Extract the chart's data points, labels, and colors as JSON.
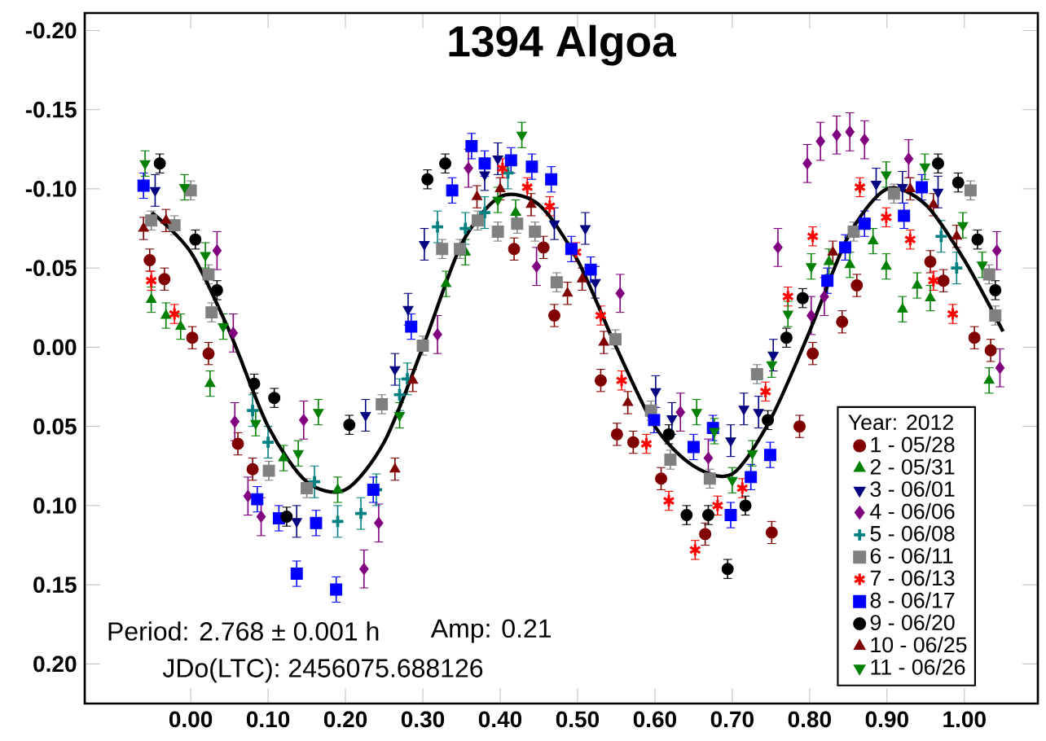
{
  "chart_data": {
    "type": "scatter",
    "title": "1394 Algoa",
    "annotations": [
      "Period: 2.768 ± 0.001 h",
      "Amp: 0.21",
      "JDo(LTC): 2456075.688126"
    ],
    "legend_title": "Year: 2012",
    "legend": "bottom right",
    "xlim": [
      -0.137,
      1.095
    ],
    "ylim": [
      0.225,
      -0.211
    ],
    "xticks": [
      {
        "value": 0,
        "label": "0.00"
      },
      {
        "value": 0.1,
        "label": "0.10"
      },
      {
        "value": 0.2,
        "label": "0.20"
      },
      {
        "value": 0.3,
        "label": "0.30"
      },
      {
        "value": 0.4,
        "label": "0.40"
      },
      {
        "value": 0.5,
        "label": "0.50"
      },
      {
        "value": 0.6,
        "label": "0.60"
      },
      {
        "value": 0.7,
        "label": "0.70"
      },
      {
        "value": 0.8,
        "label": "0.80"
      },
      {
        "value": 0.9,
        "label": "0.90"
      },
      {
        "value": 1.0,
        "label": "1.00"
      }
    ],
    "yticks": [
      {
        "value": -0.2,
        "label": "-0.20"
      },
      {
        "value": -0.15,
        "label": "-0.15"
      },
      {
        "value": -0.1,
        "label": "-0.10"
      },
      {
        "value": -0.05,
        "label": "-0.05"
      },
      {
        "value": 0,
        "label": "0.00"
      },
      {
        "value": 0.05,
        "label": "0.05"
      },
      {
        "value": 0.1,
        "label": "0.10"
      },
      {
        "value": 0.15,
        "label": "0.15"
      },
      {
        "value": 0.2,
        "label": "0.20"
      }
    ],
    "grid": false,
    "series": [
      {
        "name": "1 - 05/28",
        "color": "#800000",
        "marker": "circle",
        "x": [
          -0.053,
          -0.034,
          0.002,
          0.023,
          0.061,
          0.08,
          0.418,
          0.456,
          0.47,
          0.53,
          0.551,
          0.572,
          0.608,
          0.665,
          0.751,
          0.787,
          0.804,
          0.842,
          0.861,
          0.956,
          0.973,
          1.013,
          1.034
        ],
        "values": [
          -0.055,
          -0.043,
          -0.006,
          0.004,
          0.061,
          0.077,
          -0.062,
          -0.063,
          -0.02,
          0.021,
          0.055,
          0.06,
          0.083,
          0.118,
          0.117,
          0.05,
          0.004,
          -0.016,
          -0.039,
          -0.054,
          -0.042,
          -0.006,
          0.002
        ],
        "errors": [
          0.007,
          0.007,
          0.007,
          0.007,
          0.007,
          0.007,
          0.007,
          0.007,
          0.007,
          0.007,
          0.007,
          0.007,
          0.007,
          0.007,
          0.007,
          0.007,
          0.007,
          0.007,
          0.007,
          0.007,
          0.007,
          0.007,
          0.007
        ]
      },
      {
        "name": "2 - 05/31",
        "color": "#008000",
        "marker": "triangle",
        "x": [
          -0.051,
          -0.032,
          -0.013,
          0.025,
          0.12,
          0.19,
          0.33,
          0.355,
          0.42,
          0.825,
          0.852,
          0.882,
          0.899,
          0.92,
          0.939,
          0.956,
          1.032
        ],
        "values": [
          -0.03,
          -0.02,
          -0.013,
          0.023,
          0.07,
          0.09,
          -0.04,
          -0.06,
          -0.085,
          -0.054,
          -0.052,
          -0.067,
          -0.051,
          -0.024,
          -0.039,
          -0.031,
          0.021
        ],
        "errors": [
          0.008,
          0.008,
          0.008,
          0.008,
          0.008,
          0.008,
          0.008,
          0.008,
          0.008,
          0.008,
          0.008,
          0.008,
          0.008,
          0.008,
          0.008,
          0.008,
          0.008
        ]
      },
      {
        "name": "3 - 06/01",
        "color": "#000080",
        "marker": "triangle-down",
        "x": [
          -0.046,
          0.137,
          0.226,
          0.264,
          0.281,
          0.302,
          0.38,
          0.397,
          0.47,
          0.51,
          0.523,
          0.601,
          0.622,
          0.698,
          0.715,
          0.734,
          0.753,
          0.886,
          0.92,
          0.966
        ],
        "values": [
          -0.099,
          0.11,
          0.043,
          0.014,
          -0.024,
          -0.065,
          -0.109,
          -0.119,
          -0.078,
          -0.075,
          -0.041,
          0.028,
          0.045,
          0.059,
          0.039,
          0.041,
          0.005,
          -0.103,
          -0.101,
          -0.098
        ],
        "errors": [
          0.01,
          0.01,
          0.01,
          0.01,
          0.01,
          0.01,
          0.01,
          0.01,
          0.01,
          0.01,
          0.01,
          0.01,
          0.01,
          0.01,
          0.01,
          0.01,
          0.01,
          0.01,
          0.01,
          0.01
        ]
      },
      {
        "name": "4 - 06/06",
        "color": "#800080",
        "marker": "diamond",
        "x": [
          0.034,
          0.055,
          0.057,
          0.074,
          0.091,
          0.146,
          0.224,
          0.243,
          0.319,
          0.359,
          0.447,
          0.555,
          0.633,
          0.669,
          0.759,
          0.797,
          0.802,
          0.814,
          0.819,
          0.835,
          0.852,
          0.871,
          0.928,
          1.042,
          1.046
        ],
        "values": [
          -0.061,
          -0.009,
          0.047,
          0.094,
          0.107,
          0.046,
          0.14,
          0.111,
          -0.008,
          -0.113,
          -0.051,
          -0.034,
          0.041,
          0.07,
          -0.063,
          -0.116,
          -0.02,
          -0.13,
          -0.032,
          -0.134,
          -0.136,
          -0.131,
          -0.119,
          -0.061,
          0.013
        ],
        "errors": [
          0.012,
          0.012,
          0.012,
          0.012,
          0.012,
          0.012,
          0.012,
          0.012,
          0.012,
          0.012,
          0.012,
          0.012,
          0.012,
          0.012,
          0.012,
          0.012,
          0.012,
          0.012,
          0.012,
          0.012,
          0.012,
          0.012,
          0.012,
          0.012,
          0.012
        ]
      },
      {
        "name": "5 - 06/08",
        "color": "#008080",
        "marker": "plus",
        "x": [
          0.08,
          0.1,
          0.16,
          0.19,
          0.22,
          0.24,
          0.27,
          0.28,
          0.319,
          0.355,
          0.38,
          0.41,
          0.97,
          0.99
        ],
        "values": [
          0.04,
          0.06,
          0.085,
          0.11,
          0.105,
          0.09,
          0.03,
          0.02,
          -0.076,
          -0.075,
          -0.085,
          -0.11,
          -0.07,
          -0.05
        ],
        "errors": [
          0.01,
          0.01,
          0.01,
          0.01,
          0.01,
          0.01,
          0.01,
          0.01,
          0.01,
          0.01,
          0.01,
          0.01,
          0.01,
          0.01
        ]
      },
      {
        "name": "6 - 06/11",
        "color": "#808080",
        "marker": "square",
        "x": [
          -0.051,
          -0.021,
          0.0,
          0.023,
          0.027,
          0.101,
          0.15,
          0.247,
          0.3,
          0.325,
          0.348,
          0.371,
          0.397,
          0.422,
          0.445,
          0.473,
          0.549,
          0.595,
          0.62,
          0.671,
          0.732,
          0.857,
          0.909,
          1.008,
          1.032,
          1.04
        ],
        "values": [
          -0.08,
          -0.077,
          -0.099,
          -0.046,
          -0.022,
          0.078,
          0.089,
          0.036,
          -0.001,
          -0.062,
          -0.062,
          -0.08,
          -0.073,
          -0.078,
          -0.073,
          -0.041,
          -0.005,
          0.04,
          0.071,
          0.083,
          0.017,
          -0.073,
          -0.097,
          -0.099,
          -0.046,
          -0.02
        ],
        "errors": [
          0.006,
          0.006,
          0.006,
          0.006,
          0.006,
          0.006,
          0.006,
          0.006,
          0.006,
          0.006,
          0.006,
          0.006,
          0.006,
          0.006,
          0.006,
          0.006,
          0.006,
          0.006,
          0.006,
          0.006,
          0.006,
          0.006,
          0.006,
          0.006,
          0.006,
          0.006
        ]
      },
      {
        "name": "7 - 06/13",
        "color": "#ff0000",
        "marker": "cross",
        "x": [
          -0.051,
          -0.021,
          0.403,
          0.435,
          0.464,
          0.498,
          0.53,
          0.557,
          0.589,
          0.618,
          0.652,
          0.681,
          0.713,
          0.743,
          0.772,
          0.804,
          0.865,
          0.899,
          0.93,
          0.96,
          0.985
        ],
        "values": [
          -0.042,
          -0.021,
          -0.113,
          -0.101,
          -0.089,
          -0.06,
          -0.02,
          0.021,
          0.061,
          0.097,
          0.128,
          0.1,
          0.089,
          0.028,
          -0.032,
          -0.07,
          -0.101,
          -0.082,
          -0.068,
          -0.042,
          -0.021
        ],
        "errors": [
          0.006,
          0.006,
          0.006,
          0.006,
          0.006,
          0.006,
          0.006,
          0.006,
          0.006,
          0.006,
          0.006,
          0.006,
          0.006,
          0.006,
          0.006,
          0.006,
          0.006,
          0.006,
          0.006,
          0.006,
          0.006
        ]
      },
      {
        "name": "8 - 06/17",
        "color": "#0000ff",
        "marker": "square",
        "x": [
          -0.061,
          0.086,
          0.114,
          0.137,
          0.162,
          0.188,
          0.236,
          0.285,
          0.338,
          0.363,
          0.38,
          0.414,
          0.441,
          0.466,
          0.492,
          0.517,
          0.599,
          0.65,
          0.675,
          0.698,
          0.724,
          0.749,
          0.823,
          0.846,
          0.871,
          0.922,
          0.945
        ],
        "values": [
          -0.102,
          0.096,
          0.108,
          0.143,
          0.111,
          0.153,
          0.09,
          -0.013,
          -0.099,
          -0.127,
          -0.116,
          -0.118,
          -0.114,
          -0.106,
          -0.062,
          -0.049,
          0.046,
          0.063,
          0.051,
          0.106,
          0.082,
          0.068,
          -0.042,
          -0.063,
          -0.078,
          -0.083,
          -0.101
        ],
        "errors": [
          0.008,
          0.008,
          0.008,
          0.008,
          0.008,
          0.008,
          0.008,
          0.008,
          0.008,
          0.008,
          0.008,
          0.008,
          0.008,
          0.008,
          0.008,
          0.008,
          0.008,
          0.008,
          0.008,
          0.008,
          0.008,
          0.008,
          0.008,
          0.008,
          0.008,
          0.008,
          0.008
        ]
      },
      {
        "name": "9 - 06/20",
        "color": "#000000",
        "marker": "circle",
        "x": [
          -0.04,
          0.006,
          0.034,
          0.082,
          0.108,
          0.124,
          0.205,
          0.306,
          0.329,
          0.618,
          0.641,
          0.669,
          0.694,
          0.717,
          0.746,
          0.77,
          0.791,
          0.966,
          0.992,
          1.017,
          1.04
        ],
        "values": [
          -0.116,
          -0.068,
          -0.036,
          0.023,
          0.032,
          0.107,
          0.049,
          -0.106,
          -0.116,
          0.055,
          0.106,
          0.106,
          0.14,
          0.1,
          0.046,
          -0.006,
          -0.031,
          -0.116,
          -0.104,
          -0.068,
          -0.036
        ],
        "errors": [
          0.006,
          0.006,
          0.006,
          0.006,
          0.006,
          0.006,
          0.006,
          0.006,
          0.006,
          0.006,
          0.006,
          0.006,
          0.006,
          0.006,
          0.006,
          0.006,
          0.006,
          0.006,
          0.006,
          0.006,
          0.006
        ]
      },
      {
        "name": "10 - 06/25",
        "color": "#800000",
        "marker": "triangle",
        "x": [
          -0.061,
          -0.032,
          0.264,
          0.287,
          0.37,
          0.4,
          0.44,
          0.487,
          0.506,
          0.534,
          0.565,
          0.83,
          0.93,
          0.96,
          0.99
        ],
        "values": [
          -0.075,
          -0.08,
          0.077,
          0.021,
          -0.095,
          -0.1,
          -0.09,
          -0.034,
          -0.043,
          -0.003,
          0.035,
          -0.06,
          -0.1,
          -0.09,
          -0.07
        ],
        "errors": [
          0.007,
          0.007,
          0.007,
          0.007,
          0.007,
          0.007,
          0.007,
          0.007,
          0.007,
          0.007,
          0.007,
          0.007,
          0.007,
          0.007,
          0.007
        ]
      },
      {
        "name": "11 - 06/26",
        "color": "#008000",
        "marker": "triangle-down",
        "x": [
          -0.059,
          -0.008,
          0.019,
          0.042,
          0.084,
          0.139,
          0.165,
          0.27,
          0.397,
          0.428,
          0.654,
          0.677,
          0.7,
          0.726,
          0.751,
          0.772,
          0.802,
          0.899,
          0.949,
          0.998,
          1.023
        ],
        "values": [
          -0.116,
          -0.101,
          -0.058,
          -0.013,
          0.048,
          0.067,
          0.041,
          0.043,
          -0.093,
          -0.134,
          0.041,
          0.053,
          0.084,
          0.067,
          0.011,
          -0.021,
          -0.051,
          -0.109,
          -0.114,
          -0.077,
          -0.052
        ],
        "errors": [
          0.008,
          0.008,
          0.008,
          0.008,
          0.008,
          0.008,
          0.008,
          0.008,
          0.008,
          0.008,
          0.008,
          0.008,
          0.008,
          0.008,
          0.008,
          0.008,
          0.008,
          0.008,
          0.008,
          0.008,
          0.008
        ]
      },
      {
        "type": "line",
        "color": "#000000",
        "x": [
          -0.05,
          0.0,
          0.05,
          0.1,
          0.15,
          0.2,
          0.25,
          0.3,
          0.35,
          0.4,
          0.45,
          0.5,
          0.55,
          0.6,
          0.65,
          0.7,
          0.75,
          0.8,
          0.85,
          0.9,
          0.95,
          1.0,
          1.05
        ],
        "values": [
          -0.085,
          -0.06,
          -0.01,
          0.05,
          0.085,
          0.09,
          0.06,
          0.0,
          -0.065,
          -0.095,
          -0.09,
          -0.055,
          0.0,
          0.05,
          0.075,
          0.08,
          0.045,
          -0.01,
          -0.07,
          -0.1,
          -0.09,
          -0.055,
          -0.01
        ]
      }
    ]
  }
}
